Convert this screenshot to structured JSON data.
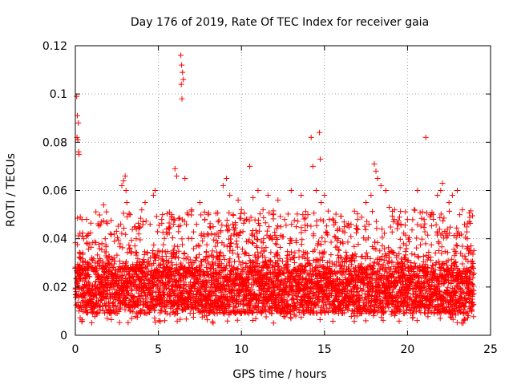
{
  "chart_data": {
    "type": "scatter",
    "title": "Day 176 of 2019, Rate Of TEC Index for receiver gaia",
    "xlabel": "GPS time / hours",
    "ylabel": "ROTI / TECUs",
    "xlim": [
      0,
      25
    ],
    "ylim": [
      0,
      0.12
    ],
    "x_ticks": [
      0,
      5,
      10,
      15,
      20,
      25
    ],
    "x_tick_labels": [
      "0",
      "5",
      "10",
      "15",
      "20",
      "25"
    ],
    "y_ticks": [
      0,
      0.02,
      0.04,
      0.06,
      0.08,
      0.1,
      0.12
    ],
    "y_tick_labels": [
      "0",
      "0.02",
      "0.04",
      "0.06",
      "0.08",
      "0.1",
      "0.12"
    ],
    "grid": true,
    "marker": "+",
    "color": "#ff0000",
    "series": [
      {
        "name": "ROTI",
        "band": {
          "x_start": 0,
          "x_end": 24,
          "y_low": 0.009,
          "y_high": 0.028,
          "outer_low": 0.005,
          "outer_high": 0.035
        },
        "points": [
          [
            0.08,
            0.099
          ],
          [
            0.12,
            0.091
          ],
          [
            0.18,
            0.088
          ],
          [
            0.1,
            0.082
          ],
          [
            0.15,
            0.081
          ],
          [
            0.2,
            0.076
          ],
          [
            0.22,
            0.075
          ],
          [
            0.3,
            0.049
          ],
          [
            0.4,
            0.048
          ],
          [
            0.5,
            0.04
          ],
          [
            1.2,
            0.03
          ],
          [
            1.6,
            0.038
          ],
          [
            1.7,
            0.054
          ],
          [
            1.8,
            0.04
          ],
          [
            2.2,
            0.032
          ],
          [
            2.8,
            0.062
          ],
          [
            2.9,
            0.064
          ],
          [
            3.0,
            0.066
          ],
          [
            3.05,
            0.06
          ],
          [
            3.1,
            0.055
          ],
          [
            3.3,
            0.05
          ],
          [
            3.6,
            0.045
          ],
          [
            4.0,
            0.052
          ],
          [
            4.2,
            0.055
          ],
          [
            4.5,
            0.046
          ],
          [
            4.7,
            0.058
          ],
          [
            4.8,
            0.06
          ],
          [
            5.2,
            0.048
          ],
          [
            5.5,
            0.044
          ],
          [
            5.8,
            0.05
          ],
          [
            6.0,
            0.069
          ],
          [
            6.1,
            0.066
          ],
          [
            6.35,
            0.116
          ],
          [
            6.4,
            0.112
          ],
          [
            6.45,
            0.109
          ],
          [
            6.5,
            0.106
          ],
          [
            6.38,
            0.104
          ],
          [
            6.42,
            0.098
          ],
          [
            6.6,
            0.065
          ],
          [
            6.8,
            0.05
          ],
          [
            7.0,
            0.052
          ],
          [
            7.3,
            0.046
          ],
          [
            7.5,
            0.055
          ],
          [
            7.8,
            0.048
          ],
          [
            8.0,
            0.05
          ],
          [
            8.3,
            0.045
          ],
          [
            8.6,
            0.047
          ],
          [
            8.9,
            0.062
          ],
          [
            9.1,
            0.065
          ],
          [
            9.3,
            0.058
          ],
          [
            9.5,
            0.05
          ],
          [
            9.8,
            0.056
          ],
          [
            10.0,
            0.052
          ],
          [
            10.3,
            0.048
          ],
          [
            10.5,
            0.07
          ],
          [
            10.7,
            0.057
          ],
          [
            11.0,
            0.06
          ],
          [
            11.3,
            0.052
          ],
          [
            11.6,
            0.058
          ],
          [
            11.9,
            0.05
          ],
          [
            12.2,
            0.056
          ],
          [
            12.6,
            0.048
          ],
          [
            13.0,
            0.06
          ],
          [
            13.3,
            0.045
          ],
          [
            13.6,
            0.058
          ],
          [
            14.0,
            0.05
          ],
          [
            14.2,
            0.082
          ],
          [
            14.3,
            0.07
          ],
          [
            14.5,
            0.06
          ],
          [
            14.7,
            0.084
          ],
          [
            14.75,
            0.073
          ],
          [
            14.8,
            0.055
          ],
          [
            15.0,
            0.058
          ],
          [
            15.3,
            0.048
          ],
          [
            15.8,
            0.044
          ],
          [
            16.2,
            0.045
          ],
          [
            16.6,
            0.046
          ],
          [
            17.0,
            0.048
          ],
          [
            17.5,
            0.055
          ],
          [
            17.8,
            0.058
          ],
          [
            18.0,
            0.071
          ],
          [
            18.1,
            0.068
          ],
          [
            18.2,
            0.065
          ],
          [
            18.4,
            0.062
          ],
          [
            18.7,
            0.06
          ],
          [
            18.9,
            0.053
          ],
          [
            19.2,
            0.048
          ],
          [
            19.6,
            0.046
          ],
          [
            20.0,
            0.048
          ],
          [
            20.4,
            0.052
          ],
          [
            20.6,
            0.06
          ],
          [
            21.0,
            0.048
          ],
          [
            21.1,
            0.082
          ],
          [
            21.4,
            0.05
          ],
          [
            21.8,
            0.058
          ],
          [
            22.0,
            0.06
          ],
          [
            22.1,
            0.063
          ],
          [
            22.5,
            0.055
          ],
          [
            22.7,
            0.058
          ],
          [
            23.0,
            0.06
          ],
          [
            23.3,
            0.052
          ],
          [
            23.6,
            0.04
          ],
          [
            23.8,
            0.035
          ]
        ]
      }
    ]
  }
}
